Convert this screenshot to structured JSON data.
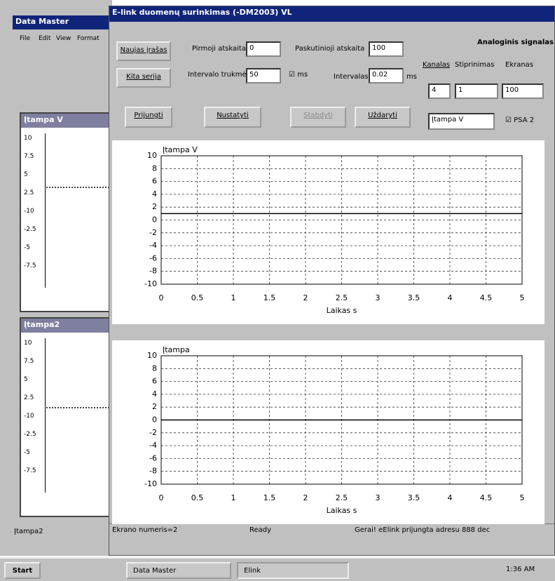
{
  "background_window": {
    "title": "Data Master",
    "menu": [
      "File",
      "Edit",
      "View",
      "Format"
    ],
    "subwindows": [
      {
        "title": "Įtampa V",
        "ticks": [
          "10",
          "7.5",
          "5",
          "2.5",
          "-10",
          "-2.5",
          "-5",
          "-7.5"
        ]
      },
      {
        "title": "Įtampa2",
        "ticks": [
          "10",
          "7.5",
          "5",
          "2.5",
          "-10",
          "-2.5",
          "-5",
          "-7.5"
        ]
      }
    ],
    "status": "Įtampa2"
  },
  "main_window": {
    "title": "E-link duomenų surinkimas (-DM2003) VL",
    "buttons": {
      "new": "Naujas įrašas",
      "series": "Kita serija",
      "connect": "Prijungti",
      "set": "Nustatyti",
      "stop": "Stabdyti",
      "close": "Uždaryti"
    },
    "fields": {
      "first_label": "Pirmoji atskaita",
      "first_value": "0",
      "last_label": "Paskutinioji atskaita",
      "last_value": "100",
      "interval_label": "Intervalo trukmė",
      "interval_value": "50",
      "ms_check": "ms",
      "step_label": "Intervalas",
      "step_value": "0.02",
      "step_unit": "ms",
      "signal": "Analoginis signalas",
      "channel_label": "Kanalas",
      "gain_label": "Stiprinimas",
      "screen_label": "Ekranas",
      "channel_value": "4",
      "gain_value": "1",
      "screen_value": "100",
      "name_value": "Įtampa V",
      "psa": "PSA 2"
    },
    "plots": [
      {
        "title": "Įtampa V",
        "xlabel": "Laikas s",
        "xlim": [
          0,
          5
        ],
        "ylim": [
          -10,
          10
        ],
        "xticks": [
          0,
          0.5,
          1,
          1.5,
          2,
          2.5,
          3,
          3.5,
          4,
          4.5,
          5
        ],
        "yticks": [
          -10,
          -8,
          -6,
          -4,
          -2,
          0,
          2,
          4,
          6,
          8,
          10
        ],
        "grid": true,
        "x": [
          0,
          5
        ],
        "values": [
          1,
          1
        ],
        "color": "#000000"
      },
      {
        "title": "Įtampa",
        "xlabel": "Laikas s",
        "xlim": [
          0,
          5
        ],
        "ylim": [
          -10,
          10
        ],
        "xticks": [
          0,
          0.5,
          1,
          1.5,
          2,
          2.5,
          3,
          3.5,
          4,
          4.5,
          5
        ],
        "yticks": [
          -10,
          -8,
          -6,
          -4,
          -2,
          0,
          2,
          4,
          6,
          8,
          10
        ],
        "grid": true,
        "x": [
          0,
          5
        ],
        "values": [
          0,
          0
        ],
        "color": "#000000"
      }
    ],
    "status": [
      "Ekrano numeris=2",
      "Ready",
      "Gerai! eElink prijungta adresu 888 dec"
    ]
  },
  "taskbar": {
    "start": "Start",
    "apps": [
      "Data Master",
      "Elink"
    ],
    "clock": "1:36 AM"
  }
}
